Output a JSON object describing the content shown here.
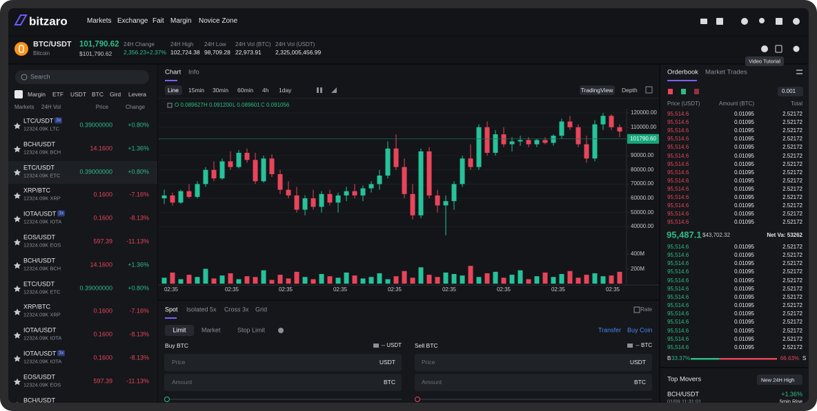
{
  "nav": {
    "logo": "bitzaro",
    "menu": [
      "Markets",
      "Exchange",
      "Fait",
      "Margin",
      "Novice Zone"
    ]
  },
  "ticker": {
    "pair": "BTC/USDT",
    "name": "Bitcoin",
    "price": "101,790.62",
    "price_usd": "$101,790.62",
    "stats": [
      {
        "label": "24H Change",
        "value": "2,356.23",
        "change": "+2.37%"
      },
      {
        "label": "24H High",
        "value": "102,724.38"
      },
      {
        "label": "24H Low",
        "value": "98,709.28"
      },
      {
        "label": "24H Vol (BTC)",
        "value": "22,973.91"
      },
      {
        "label": "24H Vol (USDT)",
        "value": "2,325,005,456.99"
      }
    ],
    "tooltip": "Video Tutorial"
  },
  "markets": {
    "search": "Search",
    "tabs": [
      "Margin",
      "ETF",
      "USDT",
      "BTC",
      "Gird",
      "Levera"
    ],
    "headers": [
      "Markets",
      "24H Vol",
      "Price",
      "Change"
    ],
    "rows": [
      {
        "pair": "LTC/USDT",
        "badge": "3x",
        "volume": "12324.09K LTC",
        "price": "0.39000000",
        "price_color": "#2ebd85",
        "change": "+0.80%"
      },
      {
        "pair": "BCH/USDT",
        "volume": "12324.09K BCH",
        "price": "14.1600",
        "price_color": "#e8455a",
        "change": "+1.36%"
      },
      {
        "pair": "ETC/USDT",
        "volume": "12324.09K ETC",
        "price": "0.39000000",
        "price_color": "#2ebd85",
        "change": "+0.80%"
      },
      {
        "pair": "XRP/BTC",
        "volume": "12324.09K XRP",
        "price": "0.1600",
        "price_color": "#e8455a",
        "change": "-7.16%"
      },
      {
        "pair": "IOTA/USDT",
        "badge": "3x",
        "volume": "12324.09K IOTA",
        "price": "0.1600",
        "price_color": "#e8455a",
        "change": "-8.13%"
      },
      {
        "pair": "EOS/USDT",
        "volume": "12324.09K EOS",
        "price": "597.39",
        "price_color": "#e8455a",
        "change": "-11.13%"
      },
      {
        "pair": "BCH/USDT",
        "volume": "12324.09K BCH",
        "price": "14.1600",
        "price_color": "#e8455a",
        "change": "+1.36%"
      },
      {
        "pair": "ETC/USDT",
        "volume": "12324.09K ETC",
        "price": "0.39000000",
        "price_color": "#2ebd85",
        "change": "+0.80%"
      },
      {
        "pair": "XRP/BTC",
        "volume": "12324.09K XRP",
        "price": "0.1600",
        "price_color": "#e8455a",
        "change": "-7.16%"
      },
      {
        "pair": "IOTA/USDT",
        "volume": "12324.09K IOTA",
        "price": "0.1600",
        "price_color": "#e8455a",
        "change": "-8.13%"
      },
      {
        "pair": "IOTA/USDT",
        "badge": "3x",
        "volume": "12324.09K IOTA",
        "price": "0.1600",
        "price_color": "#e8455a",
        "change": "-8.13%"
      },
      {
        "pair": "EOS/USDT",
        "volume": "12324.09K EOS",
        "price": "597.39",
        "price_color": "#e8455a",
        "change": "-11.13%"
      },
      {
        "pair": "BCH/USDT"
      }
    ]
  },
  "chart_tabs": [
    "Chart",
    "Info"
  ],
  "intervals": [
    "Line",
    "15min",
    "30min",
    "60min",
    "4h",
    "1day"
  ],
  "chart_views": [
    "TradingView",
    "Depth"
  ],
  "ohlc": [
    "O 0.089627",
    "H 0.091200",
    "L 0.089601",
    "C 0.091056"
  ],
  "chart_data": {
    "type": "candlestick",
    "open": [
      60000,
      62000,
      57000,
      65000,
      61000,
      70000,
      80000,
      74000,
      86000,
      82000,
      92000,
      87000,
      72000,
      88000,
      77000,
      66000,
      62000,
      52000,
      60000,
      54000,
      63000,
      57000,
      62000,
      65000,
      62000,
      67000,
      70000,
      76000,
      95000,
      82000,
      63000,
      48000,
      93000,
      62000,
      55000,
      58000,
      70000,
      88000,
      82000,
      110000,
      92000,
      105000,
      98000,
      100000,
      101000,
      98000,
      101000,
      99000,
      104000,
      114000,
      110000,
      98000,
      88000,
      112000,
      118000,
      110000
    ],
    "high": [
      66000,
      64000,
      66000,
      70000,
      72000,
      82000,
      86000,
      88000,
      93000,
      94000,
      95000,
      92000,
      90000,
      91000,
      80000,
      72000,
      68000,
      62000,
      66000,
      65000,
      66000,
      64000,
      68000,
      70000,
      69000,
      72000,
      80000,
      100000,
      105000,
      88000,
      70000,
      95000,
      96000,
      66000,
      62000,
      72000,
      90000,
      98000,
      112000,
      114000,
      108000,
      110000,
      103000,
      104000,
      103000,
      102000,
      103000,
      105000,
      116000,
      118000,
      112000,
      104000,
      115000,
      120000,
      119000,
      112000
    ],
    "low": [
      56000,
      55000,
      56000,
      60000,
      60000,
      68000,
      72000,
      73000,
      80000,
      81000,
      85000,
      70000,
      71000,
      75000,
      63000,
      60000,
      50000,
      48000,
      52000,
      50000,
      55000,
      50000,
      58000,
      60000,
      58000,
      64000,
      66000,
      74000,
      80000,
      60000,
      45000,
      46000,
      60000,
      50000,
      34000,
      52000,
      68000,
      80000,
      80000,
      90000,
      90000,
      96000,
      93000,
      97000,
      96000,
      96000,
      98000,
      97000,
      102000,
      108000,
      96000,
      85000,
      86000,
      108000,
      108000,
      103000
    ],
    "close": [
      62000,
      57000,
      65000,
      61000,
      70000,
      80000,
      74000,
      86000,
      82000,
      92000,
      87000,
      72000,
      88000,
      77000,
      66000,
      62000,
      52000,
      60000,
      54000,
      63000,
      57000,
      62000,
      65000,
      62000,
      67000,
      70000,
      76000,
      95000,
      82000,
      63000,
      48000,
      93000,
      62000,
      55000,
      58000,
      70000,
      88000,
      82000,
      110000,
      92000,
      105000,
      98000,
      100000,
      101000,
      98000,
      101000,
      99000,
      104000,
      114000,
      110000,
      98000,
      88000,
      112000,
      118000,
      110000,
      107000
    ],
    "volume": [
      80000000,
      150000000,
      60000000,
      120000000,
      90000000,
      200000000,
      70000000,
      110000000,
      140000000,
      60000000,
      100000000,
      90000000,
      180000000,
      50000000,
      120000000,
      70000000,
      160000000,
      90000000,
      60000000,
      130000000,
      100000000,
      80000000,
      150000000,
      110000000,
      70000000,
      90000000,
      140000000,
      60000000,
      100000000,
      170000000,
      80000000,
      220000000,
      120000000,
      90000000,
      150000000,
      130000000,
      110000000,
      240000000,
      90000000,
      140000000,
      160000000,
      80000000,
      120000000,
      180000000,
      60000000,
      100000000,
      150000000,
      90000000,
      130000000,
      170000000,
      80000000,
      120000000,
      140000000,
      100000000,
      110000000,
      160000000
    ],
    "ylim": [
      30000,
      122000
    ],
    "yticks": [
      {
        "value": 120000,
        "label": "120000.00"
      },
      {
        "value": 110000,
        "label": "110000.00"
      },
      {
        "value": 90000,
        "label": "90000.00"
      },
      {
        "value": 80000,
        "label": "80000.00"
      },
      {
        "value": 70000,
        "label": "70000.00"
      },
      {
        "value": 60000,
        "label": "60000.00"
      },
      {
        "value": 50000,
        "label": "50000.00"
      },
      {
        "value": 40000,
        "label": "40000.00"
      }
    ],
    "volume_lim": [
      0,
      400000000
    ],
    "volume_ticks": [
      {
        "value": 400000000,
        "label": "400M"
      },
      {
        "value": 200000000,
        "label": "200M"
      }
    ],
    "last_price": {
      "value": 101790.6,
      "label": "101790.60"
    },
    "xtick_labels": [
      "02:35",
      "02:35",
      "02:35",
      "02:35",
      "02:35",
      "02:35",
      "02:35",
      "02:35",
      "02:35"
    ],
    "up_color": "#26c29a",
    "down_color": "#e8455a"
  },
  "order": {
    "tabs": [
      "Spot",
      "Isolated 5x",
      "Cross 3x",
      "Grid"
    ],
    "rate": "Rate",
    "types": [
      "Limit",
      "Market",
      "Stop Limit"
    ],
    "links": [
      "Transfer",
      "Buy Coin"
    ],
    "sides": [
      {
        "title": "Buy BTC",
        "balance": "-- USDT",
        "fields": [
          {
            "label": "Price",
            "unit": "USDT"
          },
          {
            "label": "Amount",
            "unit": "BTC"
          }
        ]
      },
      {
        "title": "Sell BTC",
        "balance": "-- BTC",
        "fields": [
          {
            "label": "Price",
            "unit": "USDT"
          },
          {
            "label": "Amount",
            "unit": "BTC"
          }
        ]
      }
    ]
  },
  "orderbook": {
    "tabs": [
      "Orderbook",
      "Market Trades"
    ],
    "precision": "0.001",
    "headers": [
      "Price (USDT)",
      "Amount (BTC)",
      "Total"
    ],
    "asks": [
      [
        "95,514.6",
        "0.01095",
        "2.52172"
      ],
      [
        "95,514.6",
        "0.01095",
        "2.52172"
      ],
      [
        "95,514.6",
        "0.01095",
        "2.52172"
      ],
      [
        "95,514.6",
        "0.01095",
        "2.52172"
      ],
      [
        "95,514.6",
        "0.01095",
        "2.52172"
      ],
      [
        "95,514.6",
        "0.01095",
        "2.52172"
      ],
      [
        "95,514.6",
        "0.01095",
        "2.52172"
      ],
      [
        "95,514.6",
        "0.01095",
        "2.52172"
      ],
      [
        "95,514.6",
        "0.01095",
        "2.52172"
      ],
      [
        "95,514.6",
        "0.01095",
        "2.52172"
      ],
      [
        "95,514.6",
        "0.01095",
        "2.52172"
      ],
      [
        "95,514.6",
        "0.01095",
        "2.52172"
      ],
      [
        "95,514.6",
        "0.01095",
        "2.52172"
      ],
      [
        "95,514.6",
        "0.01095",
        "2.52172"
      ]
    ],
    "mid_price": "95,487.1",
    "mid_usd": "$43,702.32",
    "net": "Net Va: 53262",
    "bids": [
      [
        "95,514.6",
        "0.01095",
        "2.52172"
      ],
      [
        "95,514.6",
        "0.01095",
        "2.52172"
      ],
      [
        "95,514.6",
        "0.01095",
        "2.52172"
      ],
      [
        "95,514.6",
        "0.01095",
        "2.52172"
      ],
      [
        "95,514.6",
        "0.01095",
        "2.52172"
      ],
      [
        "95,514.6",
        "0.01095",
        "2.52172"
      ],
      [
        "95,514.6",
        "0.01095",
        "2.52172"
      ],
      [
        "95,514.6",
        "0.01095",
        "2.52172"
      ],
      [
        "95,514.6",
        "0.01095",
        "2.52172"
      ],
      [
        "95,514.6",
        "0.01095",
        "2.52172"
      ],
      [
        "95,514.6",
        "0.01095",
        "2.52172"
      ],
      [
        "95,514.6",
        "0.01095",
        "2.52172"
      ],
      [
        "95,514.6",
        "0.01095",
        "2.52172"
      ]
    ],
    "buy_mark": "B",
    "sell_mark": "S",
    "buy_ratio": {
      "value": 33.37,
      "label": "33.37%"
    },
    "sell_ratio": {
      "value": 66.63,
      "label": "66.63%"
    }
  },
  "top_movers": {
    "title": "Top Movers",
    "filter": "New 24H High",
    "pair": "BCH/USDT",
    "time": "01/09 11:31:01",
    "change": "+1.36%",
    "note": "5min Rise"
  }
}
